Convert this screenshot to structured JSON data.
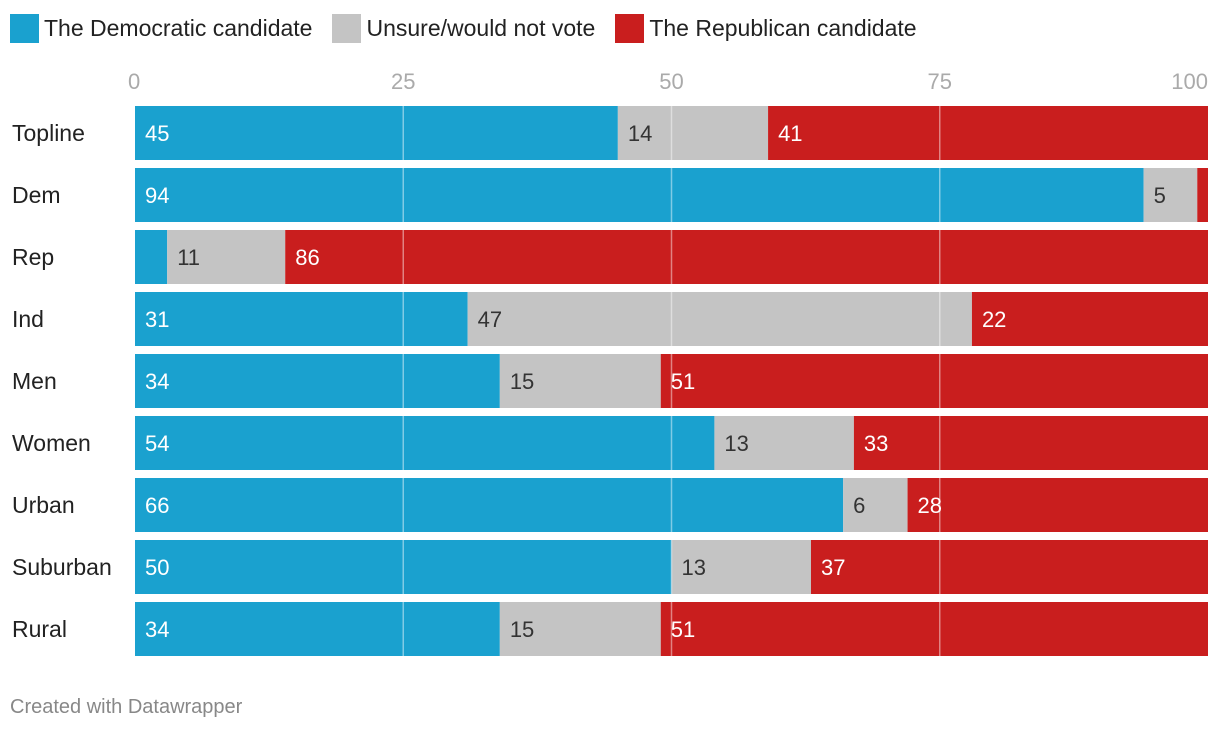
{
  "chart_data": {
    "type": "bar",
    "orientation": "horizontal",
    "stacked": true,
    "categories": [
      "Topline",
      "Dem",
      "Rep",
      "Ind",
      "Men",
      "Women",
      "Urban",
      "Suburban",
      "Rural"
    ],
    "series": [
      {
        "name": "The Democratic candidate",
        "color": "#1aa1cf",
        "values": [
          45,
          94,
          3,
          31,
          34,
          54,
          66,
          50,
          34
        ],
        "labels": [
          "45",
          "94",
          "",
          "31",
          "34",
          "54",
          "66",
          "50",
          "34"
        ]
      },
      {
        "name": "Unsure/would not vote",
        "color": "#c4c4c4",
        "values": [
          14,
          5,
          11,
          47,
          15,
          13,
          6,
          13,
          15
        ],
        "labels": [
          "14",
          "5",
          "11",
          "47",
          "15",
          "13",
          "6",
          "13",
          "15"
        ]
      },
      {
        "name": "The Republican candidate",
        "color": "#c91e1e",
        "values": [
          41,
          1,
          86,
          22,
          51,
          33,
          28,
          37,
          51
        ],
        "labels": [
          "41",
          "",
          "86",
          "22",
          "51",
          "33",
          "28",
          "37",
          "51"
        ]
      }
    ],
    "xlim": [
      0,
      100
    ],
    "xticks": [
      0,
      25,
      50,
      75,
      100
    ],
    "grid": true,
    "legend_position": "top-left"
  },
  "footer": "Created with Datawrapper"
}
